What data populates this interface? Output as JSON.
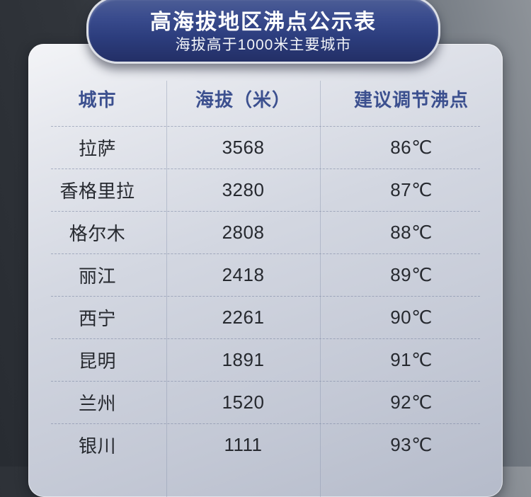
{
  "badge": {
    "title": "高海拔地区沸点公示表",
    "subtitle": "海拔高于1000米主要城市"
  },
  "table": {
    "columns": [
      "城市",
      "海拔（米）",
      "建议调节沸点"
    ],
    "rows": [
      {
        "city": "拉萨",
        "altitude": "3568",
        "boiling": "86℃"
      },
      {
        "city": "香格里拉",
        "altitude": "3280",
        "boiling": "87℃"
      },
      {
        "city": "格尔木",
        "altitude": "2808",
        "boiling": "88℃"
      },
      {
        "city": "丽江",
        "altitude": "2418",
        "boiling": "89℃"
      },
      {
        "city": "西宁",
        "altitude": "2261",
        "boiling": "90℃"
      },
      {
        "city": "昆明",
        "altitude": "1891",
        "boiling": "91℃"
      },
      {
        "city": "兰州",
        "altitude": "1520",
        "boiling": "92℃"
      },
      {
        "city": "银川",
        "altitude": "1111",
        "boiling": "93℃"
      }
    ]
  },
  "colors": {
    "badge_blue_top": "#4d5e96",
    "badge_blue_bottom": "#232f66",
    "badge_border": "#dcdfe6",
    "header_text": "#3c508f",
    "cell_text": "#26292f",
    "card_top": "#f3f4f7",
    "card_bottom": "#b5bbca",
    "bg_dark": "#282c32",
    "bg_light": "#8e9399"
  },
  "chart_data": {
    "type": "table",
    "title": "高海拔地区沸点公示表",
    "subtitle": "海拔高于1000米主要城市",
    "columns": [
      "城市",
      "海拔（米）",
      "建议调节沸点"
    ],
    "cities": [
      "拉萨",
      "香格里拉",
      "格尔木",
      "丽江",
      "西宁",
      "昆明",
      "兰州",
      "银川"
    ],
    "altitude_m": [
      3568,
      3280,
      2808,
      2418,
      2261,
      1891,
      1520,
      1111
    ],
    "boiling_point_c": [
      86,
      87,
      88,
      89,
      90,
      91,
      92,
      93
    ]
  }
}
